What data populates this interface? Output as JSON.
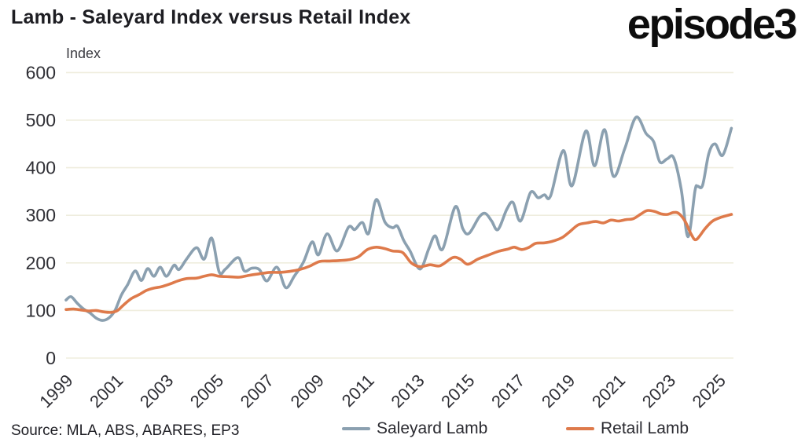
{
  "header": {
    "title": "Lamb - Saleyard Index versus Retail Index",
    "logo_text": "episode3"
  },
  "footer": {
    "source": "Source: MLA, ABS, ABARES, EP3"
  },
  "legend": {
    "saleyard": "Saleyard Lamb",
    "retail": "Retail Lamb"
  },
  "colors": {
    "saleyard": "#8BA0B0",
    "retail": "#DE7A4B",
    "gridline": "#EFEDDE",
    "tick_text": "#2F2F35",
    "title_text": "#1D1D22",
    "background": "#FFFFFF"
  },
  "chart_data": {
    "type": "line",
    "title": "Lamb - Saleyard Index versus Retail Index",
    "xlabel": "",
    "ylabel": "Index",
    "ylim": [
      0,
      600
    ],
    "xlim": [
      1999,
      2025.6
    ],
    "y_ticks": [
      0,
      100,
      200,
      300,
      400,
      500,
      600
    ],
    "x_ticks": [
      1999,
      2001,
      2003,
      2005,
      2007,
      2009,
      2011,
      2013,
      2015,
      2017,
      2019,
      2021,
      2023,
      2025
    ],
    "grid": "horizontal",
    "legend_position": "bottom",
    "series": [
      {
        "name": "Saleyard Lamb",
        "id": "saleyard-lamb",
        "color": "#8BA0B0",
        "points": [
          [
            1999.0,
            122
          ],
          [
            1999.2,
            129
          ],
          [
            1999.45,
            115
          ],
          [
            1999.7,
            103
          ],
          [
            1999.95,
            95
          ],
          [
            2000.2,
            84
          ],
          [
            2000.45,
            79
          ],
          [
            2000.7,
            84
          ],
          [
            2000.95,
            100
          ],
          [
            2001.2,
            132
          ],
          [
            2001.45,
            154
          ],
          [
            2001.75,
            183
          ],
          [
            2002.0,
            163
          ],
          [
            2002.25,
            188
          ],
          [
            2002.5,
            172
          ],
          [
            2002.75,
            191
          ],
          [
            2003.0,
            172
          ],
          [
            2003.3,
            195
          ],
          [
            2003.5,
            186
          ],
          [
            2003.8,
            208
          ],
          [
            2004.2,
            232
          ],
          [
            2004.5,
            208
          ],
          [
            2004.8,
            252
          ],
          [
            2005.1,
            181
          ],
          [
            2005.35,
            187
          ],
          [
            2005.85,
            211
          ],
          [
            2006.1,
            183
          ],
          [
            2006.4,
            189
          ],
          [
            2006.7,
            186
          ],
          [
            2007.0,
            162
          ],
          [
            2007.4,
            191
          ],
          [
            2007.75,
            148
          ],
          [
            2008.1,
            173
          ],
          [
            2008.45,
            201
          ],
          [
            2008.8,
            244
          ],
          [
            2009.05,
            217
          ],
          [
            2009.4,
            261
          ],
          [
            2009.8,
            225
          ],
          [
            2010.25,
            275
          ],
          [
            2010.5,
            270
          ],
          [
            2010.8,
            285
          ],
          [
            2011.05,
            262
          ],
          [
            2011.35,
            333
          ],
          [
            2011.7,
            286
          ],
          [
            2012.0,
            274
          ],
          [
            2012.2,
            277
          ],
          [
            2012.45,
            247
          ],
          [
            2012.7,
            225
          ],
          [
            2013.1,
            187
          ],
          [
            2013.45,
            230
          ],
          [
            2013.7,
            257
          ],
          [
            2014.0,
            229
          ],
          [
            2014.5,
            318
          ],
          [
            2014.8,
            272
          ],
          [
            2015.05,
            262
          ],
          [
            2015.45,
            296
          ],
          [
            2015.7,
            304
          ],
          [
            2015.95,
            288
          ],
          [
            2016.2,
            270
          ],
          [
            2016.55,
            312
          ],
          [
            2016.8,
            327
          ],
          [
            2017.1,
            288
          ],
          [
            2017.5,
            348
          ],
          [
            2017.8,
            337
          ],
          [
            2018.05,
            343
          ],
          [
            2018.3,
            341
          ],
          [
            2018.8,
            436
          ],
          [
            2019.15,
            362
          ],
          [
            2019.7,
            477
          ],
          [
            2020.05,
            404
          ],
          [
            2020.45,
            480
          ],
          [
            2020.8,
            382
          ],
          [
            2021.25,
            440
          ],
          [
            2021.7,
            506
          ],
          [
            2022.1,
            472
          ],
          [
            2022.4,
            455
          ],
          [
            2022.65,
            412
          ],
          [
            2022.95,
            419
          ],
          [
            2023.2,
            421
          ],
          [
            2023.5,
            355
          ],
          [
            2023.77,
            255
          ],
          [
            2024.05,
            352
          ],
          [
            2024.15,
            361
          ],
          [
            2024.35,
            363
          ],
          [
            2024.6,
            430
          ],
          [
            2024.85,
            450
          ],
          [
            2025.15,
            426
          ],
          [
            2025.5,
            483
          ]
        ]
      },
      {
        "name": "Retail Lamb",
        "id": "retail-lamb",
        "color": "#DE7A4B",
        "points": [
          [
            1999.0,
            102
          ],
          [
            1999.3,
            103
          ],
          [
            1999.6,
            101
          ],
          [
            1999.9,
            99
          ],
          [
            2000.2,
            100
          ],
          [
            2000.5,
            97
          ],
          [
            2000.8,
            96
          ],
          [
            2001.05,
            100
          ],
          [
            2001.3,
            112
          ],
          [
            2001.6,
            125
          ],
          [
            2001.9,
            133
          ],
          [
            2002.2,
            142
          ],
          [
            2002.5,
            147
          ],
          [
            2002.8,
            150
          ],
          [
            2003.15,
            156
          ],
          [
            2003.45,
            162
          ],
          [
            2003.8,
            167
          ],
          [
            2004.2,
            168
          ],
          [
            2004.5,
            172
          ],
          [
            2004.8,
            175
          ],
          [
            2005.1,
            172
          ],
          [
            2005.5,
            171
          ],
          [
            2005.9,
            170
          ],
          [
            2006.3,
            174
          ],
          [
            2006.7,
            177
          ],
          [
            2007.1,
            180
          ],
          [
            2007.5,
            180
          ],
          [
            2007.9,
            182
          ],
          [
            2008.3,
            186
          ],
          [
            2008.7,
            193
          ],
          [
            2009.1,
            203
          ],
          [
            2009.5,
            204
          ],
          [
            2009.9,
            205
          ],
          [
            2010.3,
            207
          ],
          [
            2010.65,
            213
          ],
          [
            2011.0,
            228
          ],
          [
            2011.35,
            233
          ],
          [
            2011.7,
            230
          ],
          [
            2012.0,
            225
          ],
          [
            2012.4,
            222
          ],
          [
            2012.75,
            200
          ],
          [
            2013.1,
            192
          ],
          [
            2013.5,
            196
          ],
          [
            2013.9,
            194
          ],
          [
            2014.4,
            211
          ],
          [
            2014.7,
            208
          ],
          [
            2015.0,
            197
          ],
          [
            2015.4,
            208
          ],
          [
            2015.8,
            216
          ],
          [
            2016.2,
            224
          ],
          [
            2016.6,
            229
          ],
          [
            2016.85,
            233
          ],
          [
            2017.15,
            228
          ],
          [
            2017.45,
            233
          ],
          [
            2017.7,
            241
          ],
          [
            2018.05,
            242
          ],
          [
            2018.35,
            245
          ],
          [
            2018.75,
            253
          ],
          [
            2019.05,
            265
          ],
          [
            2019.4,
            280
          ],
          [
            2019.75,
            284
          ],
          [
            2020.1,
            287
          ],
          [
            2020.4,
            284
          ],
          [
            2020.7,
            290
          ],
          [
            2021.0,
            288
          ],
          [
            2021.3,
            291
          ],
          [
            2021.6,
            293
          ],
          [
            2021.9,
            303
          ],
          [
            2022.15,
            310
          ],
          [
            2022.45,
            308
          ],
          [
            2022.7,
            303
          ],
          [
            2022.95,
            302
          ],
          [
            2023.2,
            306
          ],
          [
            2023.4,
            304
          ],
          [
            2023.65,
            288
          ],
          [
            2023.9,
            260
          ],
          [
            2024.1,
            249
          ],
          [
            2024.45,
            272
          ],
          [
            2024.75,
            288
          ],
          [
            2025.1,
            296
          ],
          [
            2025.5,
            302
          ]
        ]
      }
    ]
  }
}
